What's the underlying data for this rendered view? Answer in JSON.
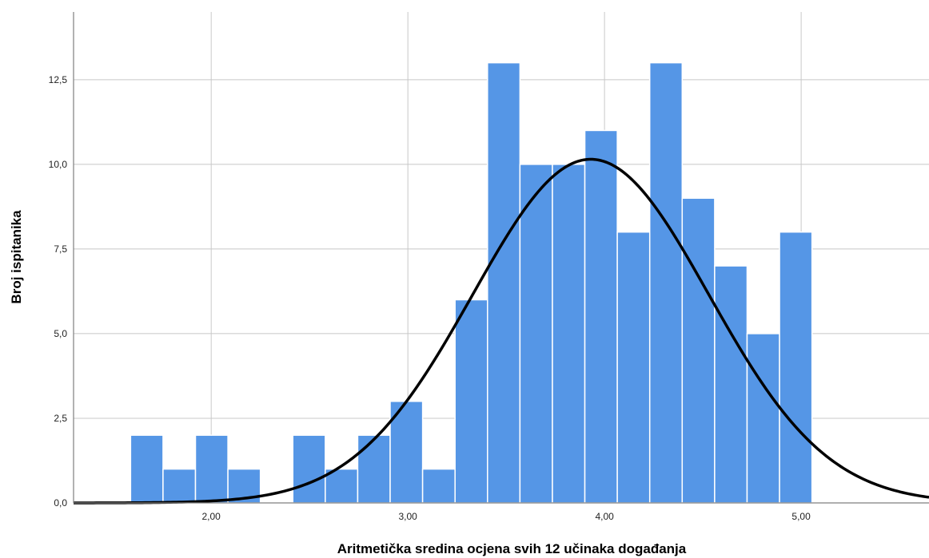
{
  "chart_data": {
    "type": "histogram",
    "title": "",
    "xlabel": "Aritmetička sredina ocjena svih 12 učinaka događanja",
    "ylabel": "Broj ispitanika",
    "xlim": [
      1.3,
      5.65
    ],
    "ylim": [
      0,
      14.5
    ],
    "bin_width": 0.165,
    "bins": [
      {
        "x0": 1.59,
        "x1": 1.755,
        "count": 2
      },
      {
        "x0": 1.755,
        "x1": 1.92,
        "count": 1
      },
      {
        "x0": 1.92,
        "x1": 2.085,
        "count": 2
      },
      {
        "x0": 2.085,
        "x1": 2.25,
        "count": 1
      },
      {
        "x0": 2.25,
        "x1": 2.415,
        "count": 0
      },
      {
        "x0": 2.415,
        "x1": 2.58,
        "count": 2
      },
      {
        "x0": 2.58,
        "x1": 2.745,
        "count": 1
      },
      {
        "x0": 2.745,
        "x1": 2.91,
        "count": 2
      },
      {
        "x0": 2.91,
        "x1": 3.075,
        "count": 3
      },
      {
        "x0": 3.075,
        "x1": 3.24,
        "count": 1
      },
      {
        "x0": 3.24,
        "x1": 3.405,
        "count": 6
      },
      {
        "x0": 3.405,
        "x1": 3.57,
        "count": 13
      },
      {
        "x0": 3.57,
        "x1": 3.735,
        "count": 10
      },
      {
        "x0": 3.735,
        "x1": 3.9,
        "count": 10
      },
      {
        "x0": 3.9,
        "x1": 4.065,
        "count": 11
      },
      {
        "x0": 4.065,
        "x1": 4.23,
        "count": 8
      },
      {
        "x0": 4.23,
        "x1": 4.395,
        "count": 13
      },
      {
        "x0": 4.395,
        "x1": 4.56,
        "count": 9
      },
      {
        "x0": 4.56,
        "x1": 4.725,
        "count": 7
      },
      {
        "x0": 4.725,
        "x1": 4.89,
        "count": 5
      },
      {
        "x0": 4.89,
        "x1": 5.055,
        "count": 8
      }
    ],
    "normal_curve": {
      "mean": 3.93,
      "sd": 0.6,
      "peak": 10.15
    },
    "x_ticks": [
      {
        "value": 2.0,
        "label": "2,00"
      },
      {
        "value": 3.0,
        "label": "3,00"
      },
      {
        "value": 4.0,
        "label": "4,00"
      },
      {
        "value": 5.0,
        "label": "5,00"
      }
    ],
    "y_ticks": [
      {
        "value": 0,
        "label": "0,0"
      },
      {
        "value": 2.5,
        "label": "2,5"
      },
      {
        "value": 5,
        "label": "5,0"
      },
      {
        "value": 7.5,
        "label": "7,5"
      },
      {
        "value": 10,
        "label": "10,0"
      },
      {
        "value": 12.5,
        "label": "12,5"
      }
    ],
    "grid": true,
    "legend": "none",
    "colors": {
      "bar": "#5596e6",
      "bar_edge": "#ffffff",
      "curve": "#000000",
      "grid": "#c8c8c8",
      "axis": "#7f7f7f"
    }
  }
}
